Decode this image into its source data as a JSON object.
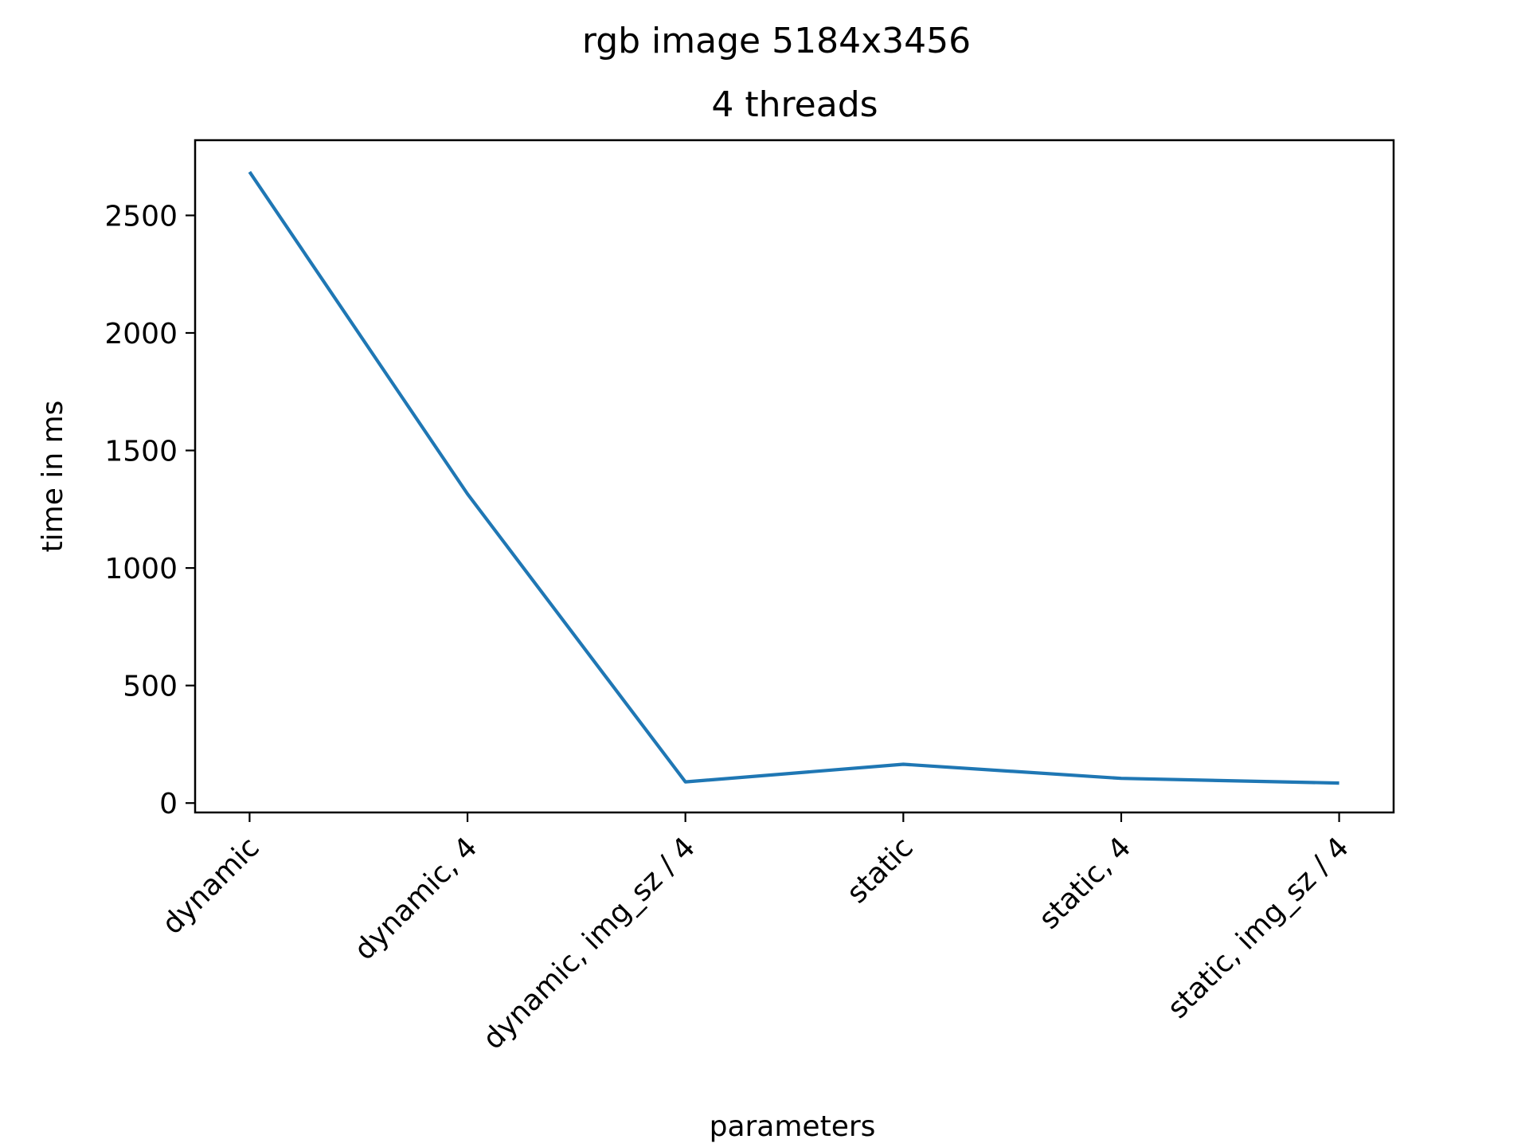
{
  "chart_data": {
    "type": "line",
    "suptitle": "rgb image 5184x3456",
    "title": "4 threads",
    "xlabel": "parameters",
    "ylabel": "time in ms",
    "categories": [
      "dynamic",
      "dynamic, 4",
      "dynamic, img_sz / 4",
      "static",
      "static, 4",
      "static, img_sz / 4"
    ],
    "series": [
      {
        "values": [
          2685,
          1315,
          90,
          165,
          105,
          85
        ],
        "color": "#1f77b4"
      }
    ],
    "yticks": [
      0,
      500,
      1000,
      1500,
      2000,
      2500
    ],
    "ytick_labels": [
      "0",
      "500",
      "1000",
      "1500",
      "2000",
      "2500"
    ],
    "ylim": [
      -40,
      2820
    ],
    "grid": false,
    "legend": false
  }
}
